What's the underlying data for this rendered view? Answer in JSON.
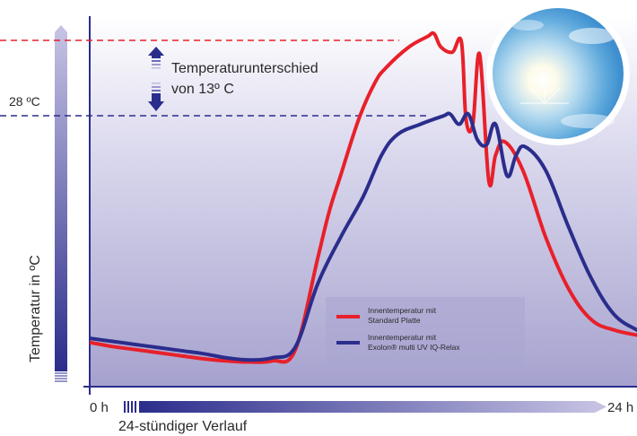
{
  "chart_data": {
    "type": "line",
    "title": "",
    "xlabel": "24-stündiger Verlauf",
    "ylabel": "Temperatur in ºC",
    "x_tick_labels": [
      "0 h",
      "24 h"
    ],
    "xlim": [
      0,
      24
    ],
    "y_reference_label": "28 ºC",
    "annotation_line1": "Temperaturunterschied",
    "annotation_line2": "von 13º C",
    "grid": false,
    "legend_position": "bottom-right, inside plot",
    "series": [
      {
        "name_line1": "Innentemperatur mit",
        "name_line2": "Standard Platte",
        "color": "#e8202a",
        "x": [
          0,
          1,
          2,
          3,
          4,
          5,
          6,
          7,
          8,
          9,
          10,
          10.5,
          11,
          11.8,
          12.5,
          13,
          14,
          14.8,
          15.1,
          15.4,
          15.9,
          16.3,
          16.5,
          16.8,
          17.1,
          17.5,
          17.8,
          18.2,
          19,
          20,
          21,
          22,
          23,
          24
        ],
        "values": [
          12.3,
          11.9,
          11.6,
          11.3,
          11.0,
          10.7,
          10.5,
          10.4,
          10.5,
          11.5,
          20.5,
          25,
          28.5,
          34,
          37.5,
          39,
          41,
          42,
          42.3,
          41,
          40.5,
          41.5,
          34,
          33.5,
          40.3,
          28,
          30.5,
          31.8,
          29,
          22.5,
          17.5,
          14.5,
          13.5,
          13.0
        ]
      },
      {
        "name_line1": "Innentemperatur mit",
        "name_line2": "Exolon® multi UV IQ-Relax",
        "color": "#2b2d8c",
        "x": [
          0,
          1,
          2,
          3,
          4,
          5,
          6,
          7,
          8,
          9,
          10,
          11,
          12,
          12.8,
          13.5,
          14.5,
          15.5,
          15.8,
          16.2,
          16.6,
          17.0,
          17.4,
          17.8,
          18.3,
          18.7,
          19.1,
          20,
          21,
          22,
          23,
          24
        ],
        "values": [
          12.7,
          12.4,
          12.1,
          11.8,
          11.5,
          11.2,
          10.8,
          10.6,
          10.8,
          11.8,
          18,
          22.5,
          26.5,
          30.5,
          32.5,
          33.5,
          34.3,
          34.5,
          33.5,
          34.5,
          32,
          31.5,
          33.5,
          28.5,
          30.5,
          31.3,
          29,
          23.5,
          18.5,
          15,
          13.5
        ]
      }
    ],
    "colors": {
      "standard": "#e8202a",
      "exolon": "#2b2d8c",
      "axis": "#2b2d8c",
      "background_top": "#ffffff",
      "background_bottom": "#a6a2cf"
    },
    "icons": {
      "sun_photo": "sun-icon",
      "arrow_up": "up-arrow-icon",
      "arrow_down": "down-arrow-icon"
    }
  }
}
